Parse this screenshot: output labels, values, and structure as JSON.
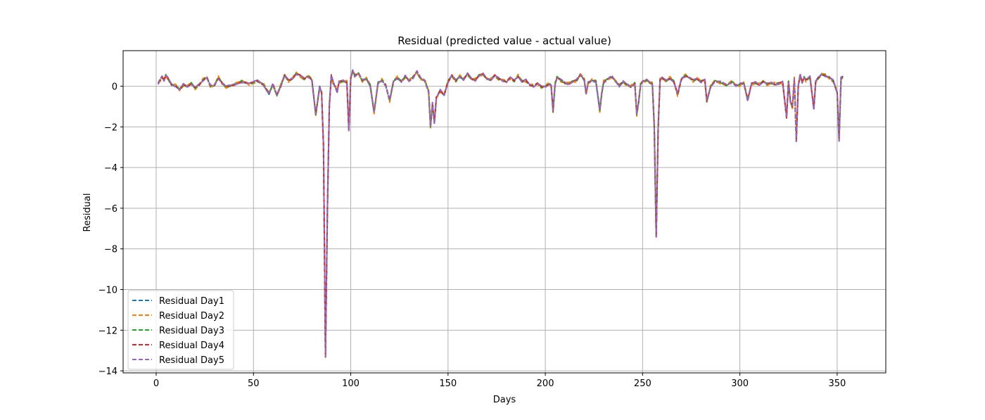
{
  "chart_data": {
    "type": "line",
    "title": "Residual (predicted value - actual value)",
    "xlabel": "Days",
    "ylabel": "Residual",
    "xlim": [
      -17,
      375
    ],
    "ylim": [
      -14.1,
      1.75
    ],
    "x_ticks": [
      0,
      50,
      100,
      150,
      200,
      250,
      300,
      350
    ],
    "x_tick_labels": [
      "0",
      "50",
      "100",
      "150",
      "200",
      "250",
      "300",
      "350"
    ],
    "y_ticks": [
      -14,
      -12,
      -10,
      -8,
      -6,
      -4,
      -2,
      0
    ],
    "y_tick_labels": [
      "−14",
      "−12",
      "−10",
      "−8",
      "−6",
      "−4",
      "−2",
      "0"
    ],
    "grid": true,
    "legend_position": "lower-left",
    "line_style": "dashed",
    "series": [
      {
        "name": "Residual Day1",
        "color": "#1f77b4",
        "dev": 0.0
      },
      {
        "name": "Residual Day2",
        "color": "#ff7f0e",
        "dev": 0.1
      },
      {
        "name": "Residual Day3",
        "color": "#2ca02c",
        "dev": -0.08
      },
      {
        "name": "Residual Day4",
        "color": "#d62728",
        "dev": 0.06
      },
      {
        "name": "Residual Day5",
        "color": "#9467bd",
        "dev": -0.05
      }
    ],
    "base_profile": [
      [
        1,
        0.1
      ],
      [
        2,
        0.3
      ],
      [
        3,
        0.5
      ],
      [
        4,
        0.3
      ],
      [
        5,
        0.5
      ],
      [
        6,
        0.4
      ],
      [
        8,
        0.1
      ],
      [
        10,
        0.0
      ],
      [
        12,
        -0.2
      ],
      [
        14,
        0.1
      ],
      [
        16,
        0.0
      ],
      [
        18,
        0.1
      ],
      [
        20,
        -0.1
      ],
      [
        22,
        0.1
      ],
      [
        24,
        0.3
      ],
      [
        26,
        0.4
      ],
      [
        28,
        0.0
      ],
      [
        30,
        0.1
      ],
      [
        32,
        0.4
      ],
      [
        34,
        0.1
      ],
      [
        36,
        0.0
      ],
      [
        40,
        0.1
      ],
      [
        44,
        0.2
      ],
      [
        48,
        0.1
      ],
      [
        52,
        0.3
      ],
      [
        55,
        0.1
      ],
      [
        58,
        -0.4
      ],
      [
        60,
        0.1
      ],
      [
        62,
        -0.4
      ],
      [
        64,
        0.0
      ],
      [
        66,
        0.5
      ],
      [
        68,
        0.3
      ],
      [
        70,
        0.4
      ],
      [
        72,
        0.6
      ],
      [
        74,
        0.5
      ],
      [
        76,
        0.4
      ],
      [
        78,
        0.5
      ],
      [
        80,
        0.3
      ],
      [
        82,
        -1.4
      ],
      [
        84,
        0.0
      ],
      [
        85,
        -0.3
      ],
      [
        86,
        -3.0
      ],
      [
        87,
        -13.3
      ],
      [
        88,
        -6.0
      ],
      [
        89,
        -1.0
      ],
      [
        90,
        0.5
      ],
      [
        91,
        0.2
      ],
      [
        92,
        0.0
      ],
      [
        93,
        -0.3
      ],
      [
        94,
        0.2
      ],
      [
        96,
        0.3
      ],
      [
        98,
        0.2
      ],
      [
        99,
        -2.2
      ],
      [
        100,
        0.4
      ],
      [
        101,
        0.8
      ],
      [
        102,
        0.5
      ],
      [
        104,
        0.6
      ],
      [
        106,
        0.3
      ],
      [
        108,
        0.4
      ],
      [
        110,
        0.0
      ],
      [
        112,
        -1.3
      ],
      [
        114,
        0.2
      ],
      [
        116,
        0.3
      ],
      [
        118,
        0.0
      ],
      [
        120,
        -0.7
      ],
      [
        122,
        0.3
      ],
      [
        124,
        0.4
      ],
      [
        126,
        0.2
      ],
      [
        128,
        0.5
      ],
      [
        130,
        0.3
      ],
      [
        132,
        0.4
      ],
      [
        134,
        0.7
      ],
      [
        136,
        0.4
      ],
      [
        138,
        0.3
      ],
      [
        140,
        -0.3
      ],
      [
        141,
        -2.0
      ],
      [
        142,
        -0.8
      ],
      [
        143,
        -1.8
      ],
      [
        144,
        -0.6
      ],
      [
        146,
        -0.2
      ],
      [
        148,
        -0.4
      ],
      [
        150,
        0.2
      ],
      [
        152,
        0.5
      ],
      [
        154,
        0.3
      ],
      [
        156,
        0.5
      ],
      [
        158,
        0.3
      ],
      [
        160,
        0.6
      ],
      [
        162,
        0.4
      ],
      [
        164,
        0.3
      ],
      [
        166,
        0.5
      ],
      [
        168,
        0.6
      ],
      [
        170,
        0.4
      ],
      [
        172,
        0.3
      ],
      [
        174,
        0.5
      ],
      [
        176,
        0.4
      ],
      [
        178,
        0.3
      ],
      [
        180,
        0.2
      ],
      [
        182,
        0.4
      ],
      [
        184,
        0.3
      ],
      [
        186,
        0.5
      ],
      [
        188,
        0.2
      ],
      [
        190,
        0.3
      ],
      [
        192,
        0.1
      ],
      [
        194,
        0.0
      ],
      [
        196,
        0.1
      ],
      [
        198,
        0.0
      ],
      [
        200,
        0.0
      ],
      [
        202,
        0.1
      ],
      [
        203,
        0.0
      ],
      [
        204,
        -1.2
      ],
      [
        205,
        0.1
      ],
      [
        206,
        0.4
      ],
      [
        208,
        0.3
      ],
      [
        210,
        0.2
      ],
      [
        212,
        0.1
      ],
      [
        214,
        0.2
      ],
      [
        216,
        0.3
      ],
      [
        218,
        0.6
      ],
      [
        220,
        0.3
      ],
      [
        221,
        -0.4
      ],
      [
        222,
        0.2
      ],
      [
        224,
        0.3
      ],
      [
        226,
        0.2
      ],
      [
        228,
        -1.2
      ],
      [
        229,
        -0.3
      ],
      [
        230,
        0.2
      ],
      [
        232,
        0.3
      ],
      [
        234,
        0.5
      ],
      [
        236,
        0.3
      ],
      [
        238,
        0.0
      ],
      [
        240,
        0.2
      ],
      [
        242,
        0.1
      ],
      [
        244,
        0.0
      ],
      [
        246,
        0.1
      ],
      [
        247,
        -1.4
      ],
      [
        248,
        -0.7
      ],
      [
        249,
        0.1
      ],
      [
        250,
        0.2
      ],
      [
        252,
        0.3
      ],
      [
        254,
        0.2
      ],
      [
        255,
        0.1
      ],
      [
        256,
        -2.0
      ],
      [
        257,
        -7.4
      ],
      [
        258,
        -2.0
      ],
      [
        259,
        0.3
      ],
      [
        260,
        0.4
      ],
      [
        262,
        0.3
      ],
      [
        264,
        0.4
      ],
      [
        266,
        0.2
      ],
      [
        268,
        -0.4
      ],
      [
        270,
        0.4
      ],
      [
        272,
        0.5
      ],
      [
        274,
        0.4
      ],
      [
        276,
        0.3
      ],
      [
        278,
        0.4
      ],
      [
        280,
        0.2
      ],
      [
        282,
        0.3
      ],
      [
        283,
        -0.7
      ],
      [
        285,
        0.0
      ],
      [
        287,
        0.2
      ],
      [
        290,
        0.2
      ],
      [
        293,
        0.1
      ],
      [
        296,
        0.2
      ],
      [
        298,
        0.0
      ],
      [
        300,
        0.1
      ],
      [
        302,
        0.2
      ],
      [
        304,
        -0.7
      ],
      [
        306,
        0.1
      ],
      [
        308,
        0.2
      ],
      [
        310,
        0.1
      ],
      [
        312,
        0.2
      ],
      [
        314,
        0.1
      ],
      [
        316,
        0.2
      ],
      [
        318,
        0.1
      ],
      [
        320,
        0.1
      ],
      [
        322,
        0.2
      ],
      [
        324,
        -1.5
      ],
      [
        325,
        0.2
      ],
      [
        326,
        -0.8
      ],
      [
        327,
        -1.0
      ],
      [
        328,
        0.4
      ],
      [
        329,
        -2.7
      ],
      [
        330,
        0.0
      ],
      [
        331,
        0.6
      ],
      [
        332,
        0.2
      ],
      [
        333,
        0.4
      ],
      [
        334,
        0.3
      ],
      [
        336,
        0.5
      ],
      [
        338,
        -1.1
      ],
      [
        339,
        0.2
      ],
      [
        340,
        0.4
      ],
      [
        342,
        0.6
      ],
      [
        344,
        0.5
      ],
      [
        346,
        0.4
      ],
      [
        348,
        0.3
      ],
      [
        350,
        -0.3
      ],
      [
        351,
        -2.7
      ],
      [
        352,
        0.4
      ],
      [
        353,
        0.5
      ]
    ]
  }
}
